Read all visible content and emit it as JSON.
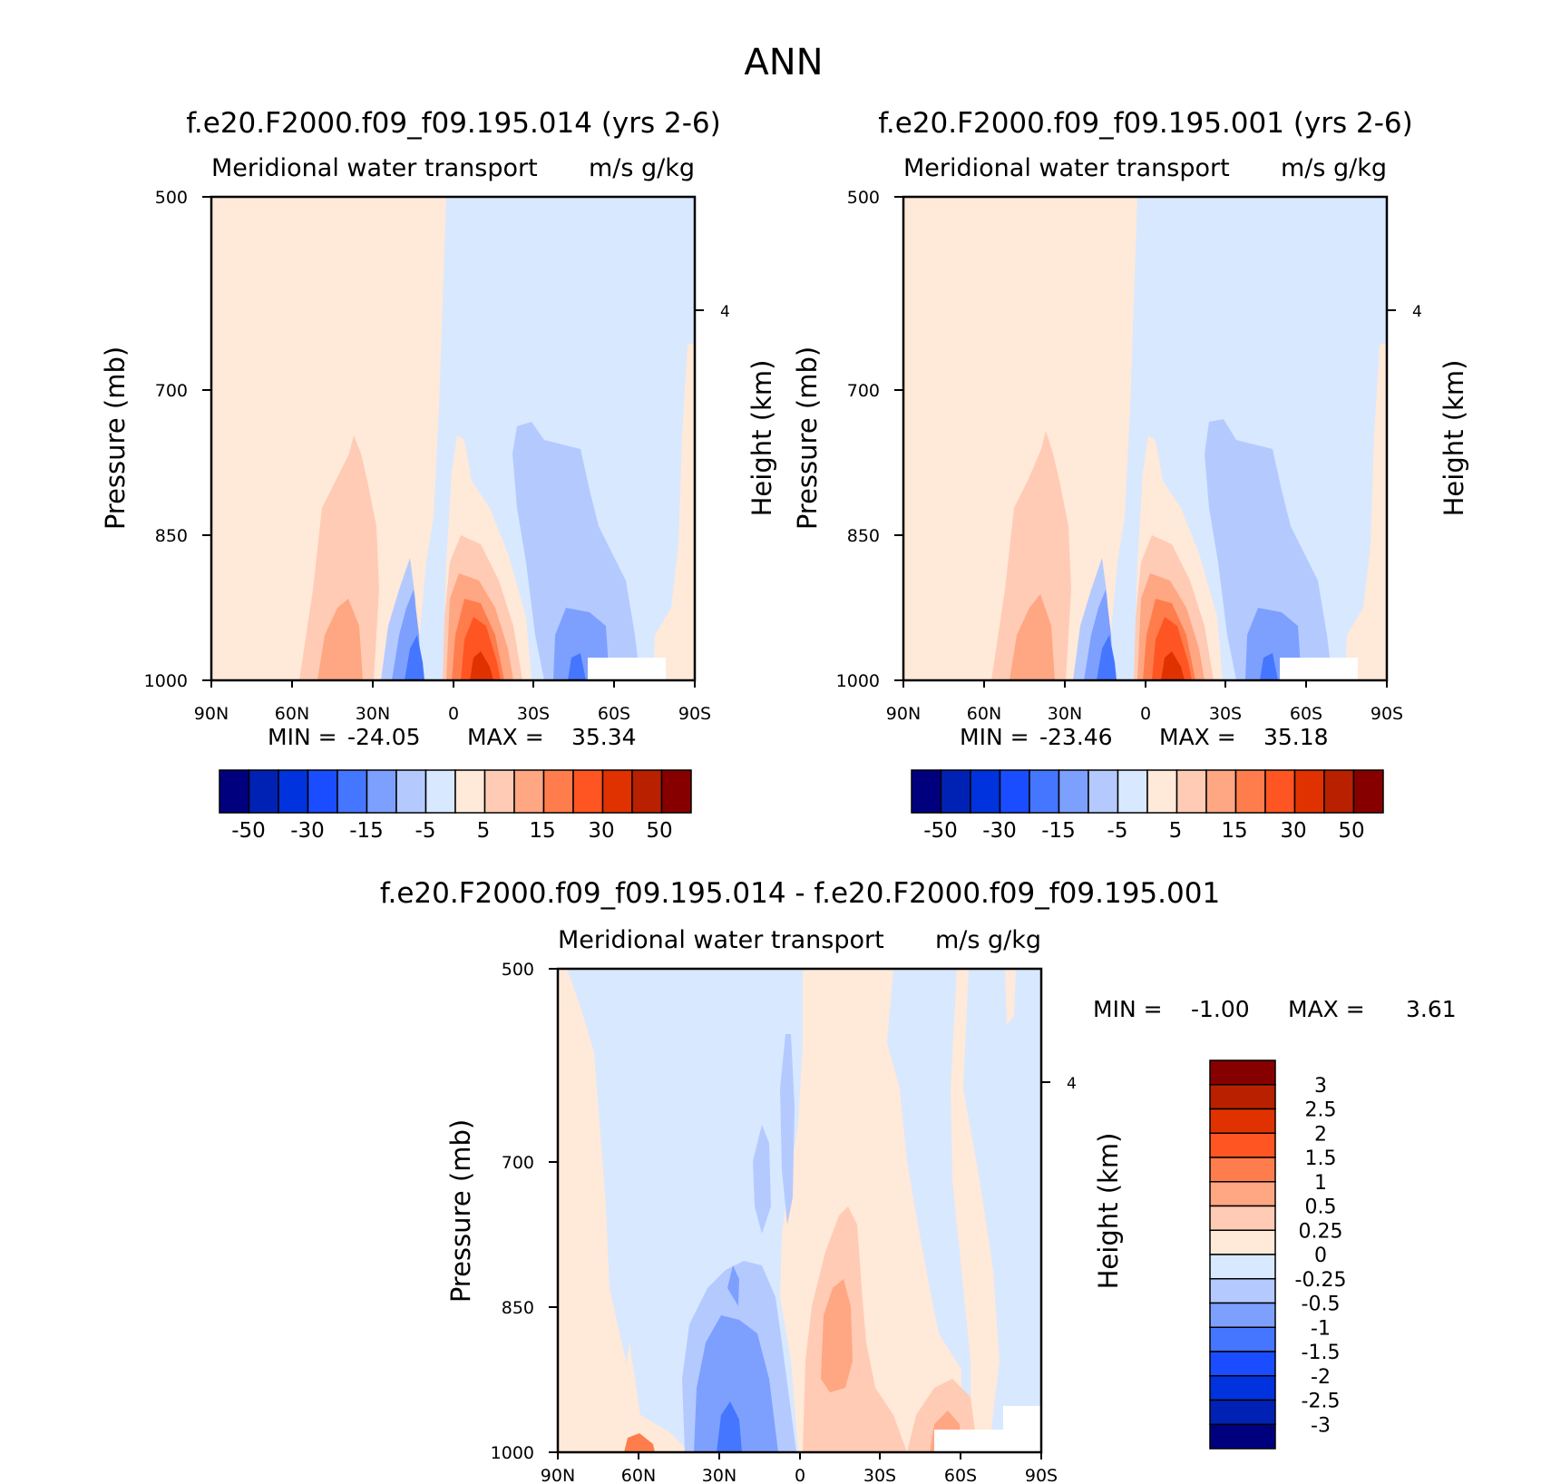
{
  "figure": {
    "title": "ANN"
  },
  "colors": {
    "abs_palette": [
      "#00007f",
      "#0022b4",
      "#0033dd",
      "#1a4dff",
      "#4476ff",
      "#7da0ff",
      "#b4caff",
      "#d8e8ff",
      "#ffe9d9",
      "#ffcbb4",
      "#ffa683",
      "#ff7d4d",
      "#ff5522",
      "#e03200",
      "#b82000",
      "#870000"
    ],
    "diff_palette": [
      "#00007f",
      "#0022b4",
      "#0033dd",
      "#1a4dff",
      "#4476ff",
      "#7da0ff",
      "#b4caff",
      "#d8e8ff",
      "#ffe9d9",
      "#ffcbb4",
      "#ffa683",
      "#ff7d4d",
      "#ff5522",
      "#e03200",
      "#b82000",
      "#870000"
    ]
  },
  "chart_data": [
    {
      "type": "heatmap",
      "title": "f.e20.F2000.f09_f09.195.014 (yrs 2-6)",
      "subtitle_left": "Meridional water transport",
      "subtitle_right": "m/s g/kg",
      "ylabel": "Pressure (mb)",
      "y2label": "Height (km)",
      "x_ticks": [
        "90N",
        "60N",
        "30N",
        "0",
        "30S",
        "60S",
        "90S"
      ],
      "y_ticks": [
        "500",
        "700",
        "850",
        "1000"
      ],
      "y2_ticks": [
        "4"
      ],
      "min_label": "MIN =",
      "min_value": "-24.05",
      "max_label": "MAX =",
      "max_value": "35.34",
      "legend_labels": [
        "-50",
        "-30",
        "-15",
        "-5",
        "5",
        "15",
        "30",
        "50"
      ],
      "ylim": [
        1000,
        500
      ],
      "xlim": [
        "90N",
        "90S"
      ],
      "grid": false
    },
    {
      "type": "heatmap",
      "title": "f.e20.F2000.f09_f09.195.001 (yrs 2-6)",
      "subtitle_left": "Meridional water transport",
      "subtitle_right": "m/s g/kg",
      "ylabel": "Pressure (mb)",
      "y2label": "Height (km)",
      "x_ticks": [
        "90N",
        "60N",
        "30N",
        "0",
        "30S",
        "60S",
        "90S"
      ],
      "y_ticks": [
        "500",
        "700",
        "850",
        "1000"
      ],
      "y2_ticks": [
        "4"
      ],
      "min_label": "MIN =",
      "min_value": "-23.46",
      "max_label": "MAX =",
      "max_value": "35.18",
      "legend_labels": [
        "-50",
        "-30",
        "-15",
        "-5",
        "5",
        "15",
        "30",
        "50"
      ],
      "ylim": [
        1000,
        500
      ],
      "xlim": [
        "90N",
        "90S"
      ],
      "grid": false
    },
    {
      "type": "heatmap",
      "title": "f.e20.F2000.f09_f09.195.014 - f.e20.F2000.f09_f09.195.001",
      "subtitle_left": "Meridional water transport",
      "subtitle_right": "m/s g/kg",
      "ylabel": "Pressure (mb)",
      "y2label": "Height (km)",
      "x_ticks": [
        "90N",
        "60N",
        "30N",
        "0",
        "30S",
        "60S",
        "90S"
      ],
      "y_ticks": [
        "500",
        "700",
        "850",
        "1000"
      ],
      "y2_ticks": [
        "4"
      ],
      "min_label": "MIN =",
      "min_value": "-1.00",
      "max_label": "MAX =",
      "max_value": "3.61",
      "legend_labels": [
        "3",
        "2.5",
        "2",
        "1.5",
        "1",
        "0.5",
        "0.25",
        "0",
        "-0.25",
        "-0.5",
        "-1",
        "-1.5",
        "-2",
        "-2.5",
        "-3"
      ],
      "ylim": [
        1000,
        500
      ],
      "xlim": [
        "90N",
        "90S"
      ],
      "grid": false
    }
  ]
}
